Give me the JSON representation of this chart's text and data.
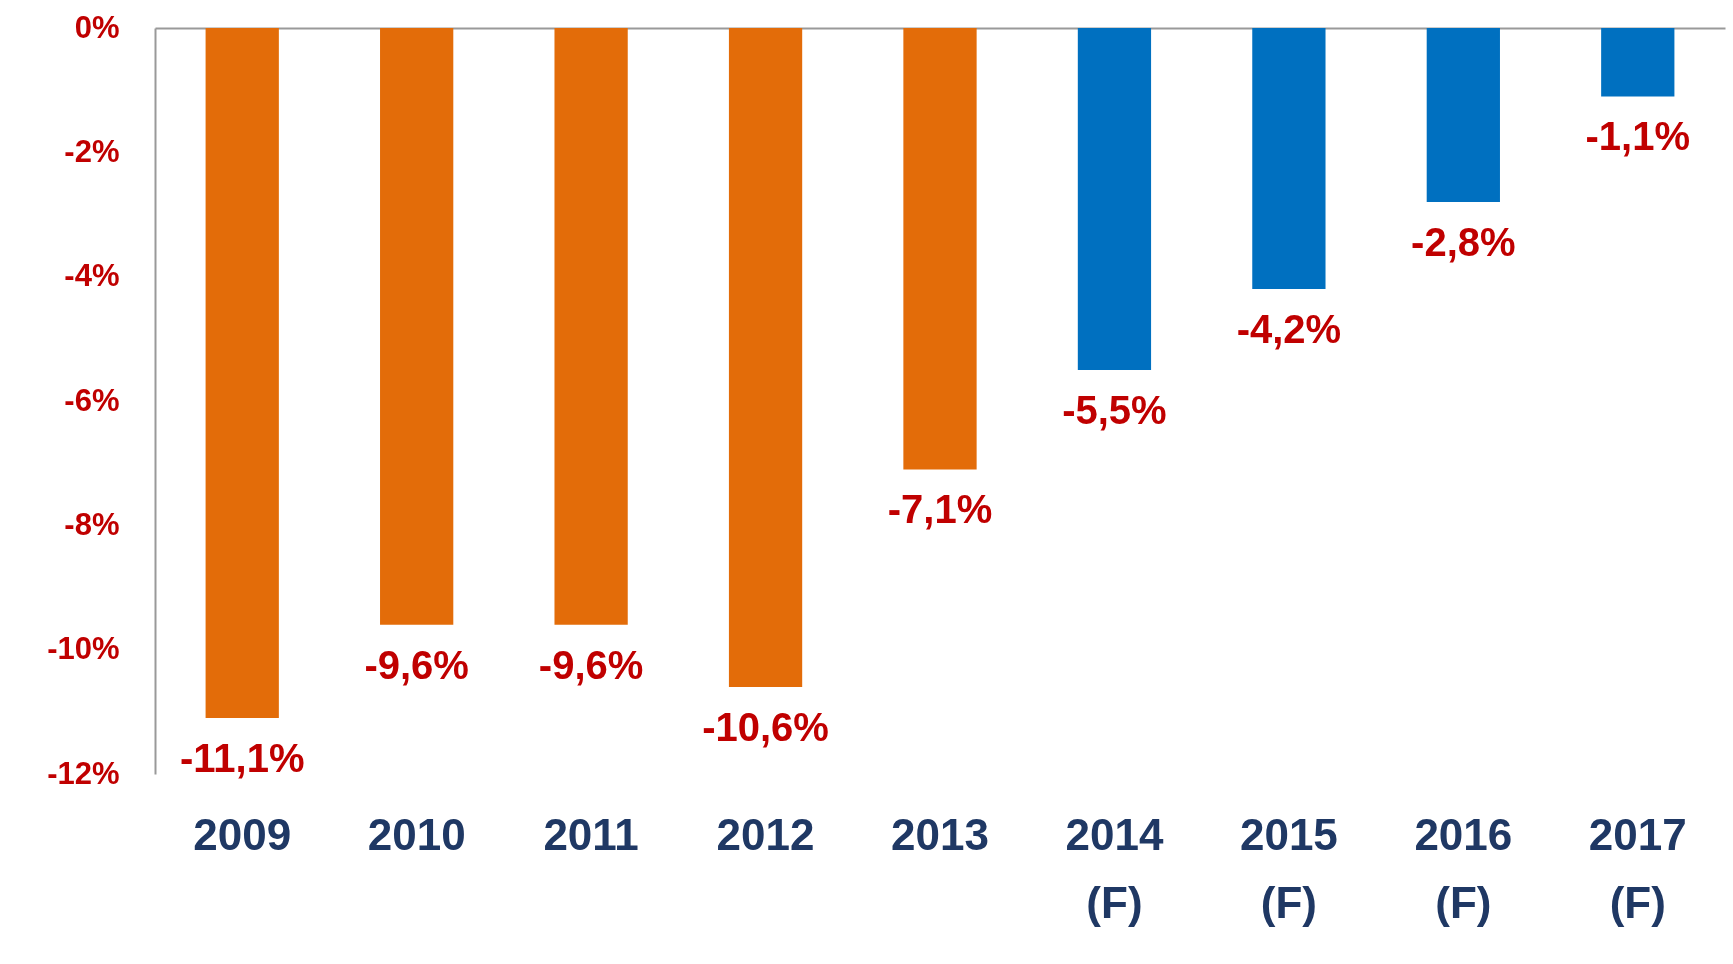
{
  "chart_data": {
    "type": "bar",
    "categories": [
      "2009",
      "2010",
      "2011",
      "2012",
      "2013",
      "2014 (F)",
      "2015 (F)",
      "2016 (F)",
      "2017 (F)"
    ],
    "values": [
      -11.1,
      -9.6,
      -9.6,
      -10.6,
      -7.1,
      -5.5,
      -4.2,
      -2.8,
      -1.1
    ],
    "colors": [
      "#e36c09",
      "#e36c09",
      "#e36c09",
      "#e36c09",
      "#e36c09",
      "#0070c0",
      "#0070c0",
      "#0070c0",
      "#0070c0"
    ],
    "value_labels": [
      "-11,1%",
      "-9,6%",
      "-9,6%",
      "-10,6%",
      "-7,1%",
      "-5,5%",
      "-4,2%",
      "-2,8%",
      "-1,1%"
    ],
    "ylim": [
      -12,
      0
    ],
    "yticks": [
      {
        "value": 0,
        "label": "0%"
      },
      {
        "value": -2,
        "label": "-2%"
      },
      {
        "value": -4,
        "label": "-4%"
      },
      {
        "value": -6,
        "label": "-6%"
      },
      {
        "value": -8,
        "label": "-8%"
      },
      {
        "value": -10,
        "label": "-10%"
      },
      {
        "value": -12,
        "label": "-12%"
      }
    ],
    "grid": false
  }
}
